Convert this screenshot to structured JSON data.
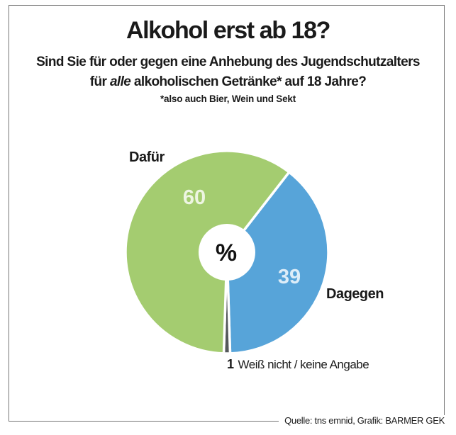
{
  "header": {
    "title": "Alkohol erst ab 18?",
    "subtitle_line1": "Sind Sie für oder gegen eine Anhebung des Jugendschutzalters",
    "subtitle_line2_pre": "für ",
    "subtitle_line2_italic": "alle",
    "subtitle_line2_post": " alkoholischen Getränke* auf 18 Jahre?",
    "footnote": "*also auch Bier, Wein und Sekt"
  },
  "chart_data": {
    "type": "pie",
    "unit": "%",
    "center_label": "%",
    "slices": [
      {
        "label": "Dafür",
        "value": 60,
        "color": "#a4cc70"
      },
      {
        "label": "Dagegen",
        "value": 39,
        "color": "#57a4d9"
      },
      {
        "label": "Weiß nicht / keine Angabe",
        "value": 1,
        "color": "#54585a"
      }
    ],
    "draw_order": [
      1,
      2,
      0
    ],
    "start_angle_deg": 37.8,
    "donut_hole": true,
    "separator_color": "#ffffff",
    "legend_position": "around-pie"
  },
  "footer": {
    "source": "Quelle: tns emnid, Grafik: BARMER GEK"
  }
}
